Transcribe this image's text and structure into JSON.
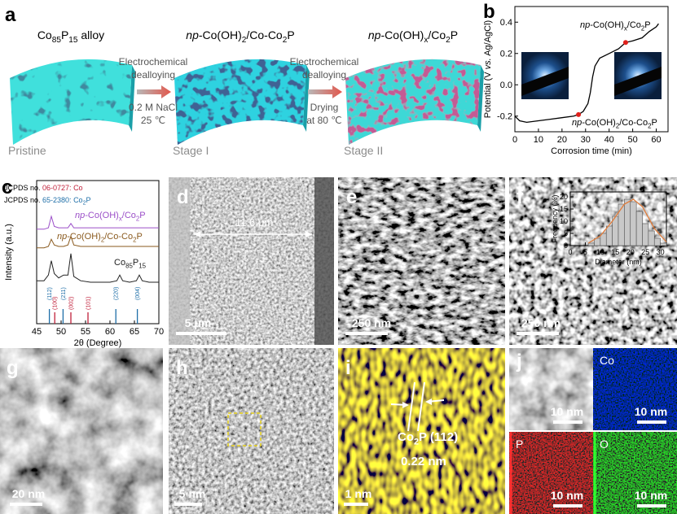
{
  "panel_letters": [
    "a",
    "b",
    "c",
    "d",
    "e",
    "f",
    "g",
    "h",
    "i",
    "j"
  ],
  "schematic": {
    "stages": [
      {
        "title": {
          "parts": [
            "Co",
            "85",
            "P",
            "15",
            " alloy"
          ]
        },
        "caption": "Pristine"
      },
      {
        "title": {
          "italic": "np",
          "parts": [
            "-Co(OH)",
            "2",
            "/Co-Co",
            "2",
            "P"
          ]
        },
        "caption": "Stage I"
      },
      {
        "title": {
          "italic": "np",
          "parts": [
            "-Co(OH)",
            "x",
            "/Co",
            "2",
            "P"
          ]
        },
        "caption": "Stage II"
      }
    ],
    "steps": [
      {
        "above": [
          "Electrochemical",
          "dealloying"
        ],
        "below": [
          "0.2 M NaCl",
          "25 ℃"
        ]
      },
      {
        "above": [
          "Electrochemical",
          "dealloying"
        ],
        "below": [
          "Drying",
          "at 80 ℃"
        ]
      }
    ]
  },
  "chart_data": [
    {
      "type": "line",
      "xlabel": "Corrosion time (min)",
      "ylabel": {
        "before": "Potential (V ",
        "italic": "vs.",
        "after": " Ag/AgCl)"
      },
      "x": [
        0,
        2,
        5,
        10,
        15,
        20,
        25,
        27,
        29,
        31,
        32,
        33,
        34,
        36,
        40,
        44,
        47,
        50,
        54,
        57,
        60,
        61
      ],
      "values": [
        -0.2,
        -0.23,
        -0.24,
        -0.23,
        -0.22,
        -0.21,
        -0.2,
        -0.19,
        -0.17,
        -0.12,
        -0.05,
        0.05,
        0.12,
        0.17,
        0.2,
        0.23,
        0.27,
        0.28,
        0.3,
        0.34,
        0.37,
        0.39
      ],
      "color": "#000000",
      "markers": {
        "x": [
          27,
          47
        ],
        "values": [
          -0.19,
          0.27
        ],
        "color": "#e0201b"
      },
      "xlim": [
        0,
        65
      ],
      "ylim": [
        -0.3,
        0.5
      ],
      "xticks": [
        0,
        10,
        20,
        30,
        40,
        50,
        60
      ],
      "yticks": [
        -0.2,
        {
          "value": 0,
          "label": "0.0"
        },
        0.2,
        0.4
      ],
      "annotations": [
        {
          "italic": "np",
          "parts": [
            "-Co(OH)",
            "x",
            "/Co",
            "2",
            "P"
          ]
        },
        {
          "italic": "np",
          "parts": [
            "-Co(OH)",
            "2",
            "/Co-Co",
            "2",
            "P"
          ]
        }
      ]
    },
    {
      "type": "line",
      "xlabel": "2θ (Degree)",
      "ylabel": "Intensity (a.u.)",
      "x": [
        45,
        46.5,
        47.4,
        48,
        48.6,
        49.5,
        50.5,
        51.4,
        52,
        52.6,
        54,
        56,
        58,
        60,
        61.4,
        62,
        62.6,
        64,
        65.4,
        66,
        66.6,
        68,
        70
      ],
      "series": [
        {
          "label": {
            "italic": "np",
            "parts": [
              "-Co(OH)",
              "x",
              "/Co",
              "2",
              "P"
            ]
          },
          "color": "#9b4fc8",
          "values": [
            6.6,
            6.6,
            6.7,
            7.5,
            6.8,
            6.7,
            6.7,
            6.7,
            7.0,
            6.7,
            6.7,
            6.7,
            6.7,
            6.7,
            6.7,
            6.7,
            6.7,
            6.7,
            6.7,
            6.7,
            6.7,
            6.7,
            6.7
          ]
        },
        {
          "label": {
            "italic": "np",
            "parts": [
              "-Co(OH)",
              "2",
              "/Co-Co",
              "2",
              "P"
            ]
          },
          "color": "#8a5a1e",
          "values": [
            5.3,
            5.3,
            5.4,
            5.9,
            5.5,
            5.4,
            5.4,
            5.5,
            6.1,
            5.5,
            5.4,
            5.4,
            5.4,
            5.4,
            5.4,
            5.4,
            5.4,
            5.4,
            5.4,
            5.4,
            5.4,
            5.4,
            5.4
          ]
        },
        {
          "label": {
            "parts": [
              "Co",
              "85",
              "P",
              "15"
            ]
          },
          "color": "#222222",
          "values": [
            3.0,
            3.0,
            3.4,
            4.4,
            3.5,
            3.2,
            3.4,
            3.4,
            4.9,
            3.3,
            3.0,
            2.9,
            2.9,
            2.9,
            3.0,
            3.4,
            3.0,
            2.9,
            3.0,
            3.4,
            3.0,
            2.9,
            2.9
          ]
        }
      ],
      "legend": [
        {
          "prefix": "JCPDS no. ",
          "code": "06-0727: ",
          "phase": [
            "Co"
          ],
          "color": "#c0203a"
        },
        {
          "prefix": "JCPDS no. ",
          "code": "65-2380: ",
          "phase": [
            "Co",
            "2",
            "P"
          ],
          "color": "#1f6fa8"
        }
      ],
      "references": [
        {
          "color": "#c0203a",
          "x": [
            48.7,
            52,
            55.5
          ],
          "labels": [
            "(100)",
            "(002)",
            "(101)"
          ]
        },
        {
          "color": "#1f6fa8",
          "x": [
            47.6,
            50.4,
            61.2,
            65.6
          ],
          "labels": [
            "(112)",
            "(211)",
            "(220)",
            "(004)"
          ]
        }
      ],
      "xlim": [
        45,
        70
      ],
      "ylim": [
        0,
        10
      ],
      "xticks": [
        45,
        50,
        55,
        60,
        65,
        70
      ]
    },
    {
      "type": "histogram",
      "xlabel": "Diameter (nm)",
      "ylabel": "Frequency (%)",
      "bins": [
        6,
        8,
        10,
        12,
        14,
        16,
        18,
        20,
        22,
        24,
        26,
        28,
        30,
        32
      ],
      "values": [
        1,
        3,
        5,
        8,
        12,
        17,
        19,
        18,
        14,
        9,
        6,
        3,
        1
      ],
      "color": "#c8c8c8",
      "fit": {
        "x": [
          6,
          10,
          14,
          18,
          21,
          24,
          28,
          32
        ],
        "values": [
          1,
          4,
          10,
          17,
          19,
          16,
          7,
          1.5
        ],
        "color": "#e07b39"
      },
      "xlim": [
        0,
        32
      ],
      "ylim": [
        0,
        22
      ],
      "xticks": [
        0,
        5,
        10,
        15,
        20,
        25,
        30
      ],
      "yticks": [
        0,
        5,
        10,
        15,
        20
      ]
    }
  ],
  "micrographs": {
    "d": {
      "scale": "5 μm",
      "measure": "11.6 μm"
    },
    "e": {
      "scale": "250 nm"
    },
    "f": {
      "scale": "250 nm"
    },
    "g": {
      "scale": "20 nm"
    },
    "h": {
      "scale": "5 nm"
    },
    "i": {
      "scale": "1 nm",
      "plane": {
        "parts": [
          "Co",
          "2",
          "P (112)"
        ]
      },
      "spacing": "0.22 nm"
    },
    "j": {
      "maps": [
        {
          "scale": "10 nm"
        },
        {
          "element": "Co",
          "scale": "10 nm"
        },
        {
          "element": "P",
          "scale": "10 nm"
        },
        {
          "element": "O",
          "scale": "10 nm"
        }
      ]
    }
  }
}
